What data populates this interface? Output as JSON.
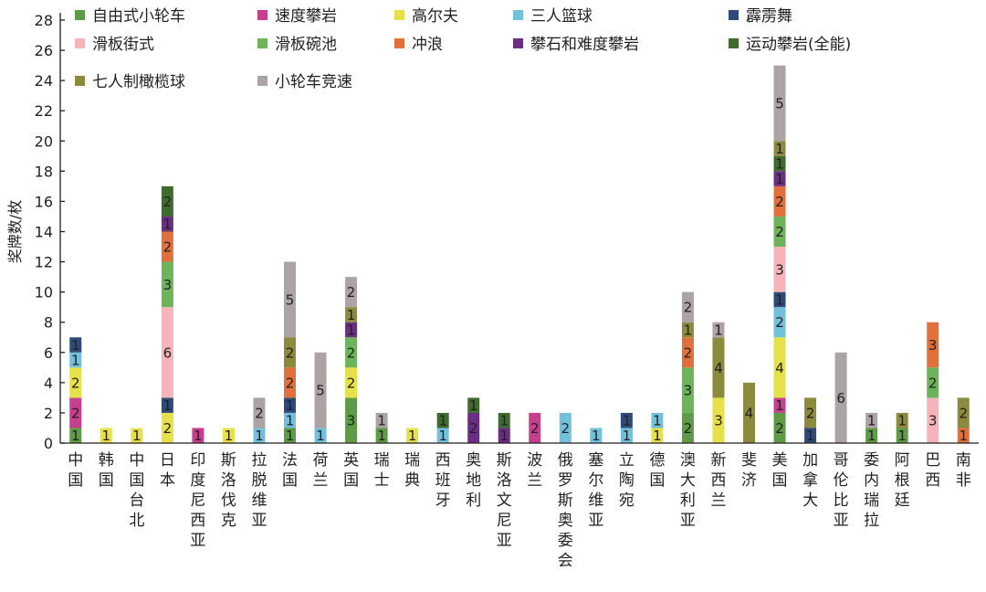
{
  "chart_data": {
    "type": "bar",
    "stacked": true,
    "title": "",
    "xlabel": "",
    "ylabel": "奖牌数/枚",
    "ylim": [
      0,
      28
    ],
    "yticks": [
      0,
      2,
      4,
      6,
      8,
      10,
      12,
      14,
      16,
      18,
      20,
      22,
      24,
      26,
      28
    ],
    "grid": false,
    "legend_position": "top-left",
    "categories": [
      "中国",
      "韩国",
      "中国台北",
      "日本",
      "印度尼西亚",
      "斯洛伐克",
      "拉脱维亚",
      "法国",
      "荷兰",
      "英国",
      "瑞士",
      "瑞典",
      "西班牙",
      "奥地利",
      "斯洛文尼亚",
      "波兰",
      "俄罗斯奥委会",
      "塞尔维亚",
      "立陶宛",
      "德国",
      "澳大利亚",
      "新西兰",
      "斐济",
      "美国",
      "加拿大",
      "哥伦比亚",
      "委内瑞拉",
      "阿根廷",
      "巴西",
      "南非"
    ],
    "series": [
      {
        "name": "自由式小轮车",
        "color": "#5e9b47",
        "values": [
          1,
          0,
          0,
          0,
          0,
          0,
          0,
          1,
          0,
          3,
          1,
          0,
          0,
          0,
          0,
          0,
          0,
          0,
          0,
          0,
          2,
          0,
          0,
          2,
          0,
          0,
          1,
          1,
          0,
          0
        ]
      },
      {
        "name": "速度攀岩",
        "color": "#c53f8e",
        "values": [
          2,
          0,
          0,
          0,
          1,
          0,
          0,
          0,
          0,
          0,
          0,
          0,
          0,
          0,
          0,
          2,
          0,
          0,
          0,
          0,
          0,
          0,
          0,
          1,
          0,
          0,
          0,
          0,
          0,
          0
        ]
      },
      {
        "name": "高尔夫",
        "color": "#e6e14a",
        "values": [
          2,
          1,
          1,
          2,
          0,
          1,
          0,
          0,
          0,
          2,
          0,
          1,
          0,
          0,
          0,
          0,
          0,
          0,
          0,
          1,
          0,
          3,
          0,
          4,
          0,
          0,
          0,
          0,
          0,
          0
        ]
      },
      {
        "name": "三人篮球",
        "color": "#72c1dc",
        "values": [
          1,
          0,
          0,
          0,
          0,
          0,
          1,
          1,
          1,
          0,
          0,
          0,
          1,
          0,
          0,
          0,
          2,
          1,
          1,
          1,
          0,
          0,
          0,
          2,
          0,
          0,
          0,
          0,
          0,
          0
        ]
      },
      {
        "name": "霹雳舞",
        "color": "#2d4a7a",
        "values": [
          1,
          0,
          0,
          1,
          0,
          0,
          0,
          1,
          0,
          0,
          0,
          0,
          0,
          0,
          0,
          0,
          0,
          0,
          1,
          0,
          0,
          0,
          0,
          1,
          1,
          0,
          0,
          0,
          0,
          0
        ]
      },
      {
        "name": "滑板街式",
        "color": "#f6b4b9",
        "values": [
          0,
          0,
          0,
          6,
          0,
          0,
          0,
          0,
          0,
          0,
          0,
          0,
          0,
          0,
          0,
          0,
          0,
          0,
          0,
          0,
          0,
          0,
          0,
          3,
          0,
          0,
          0,
          0,
          3,
          0
        ]
      },
      {
        "name": "滑板碗池",
        "color": "#6db35a",
        "values": [
          0,
          0,
          0,
          3,
          0,
          0,
          0,
          0,
          0,
          2,
          0,
          0,
          0,
          0,
          0,
          0,
          0,
          0,
          0,
          0,
          3,
          0,
          0,
          2,
          0,
          0,
          0,
          0,
          2,
          0
        ]
      },
      {
        "name": "冲浪",
        "color": "#e2703a",
        "values": [
          0,
          0,
          0,
          2,
          0,
          0,
          0,
          2,
          0,
          0,
          0,
          0,
          0,
          0,
          0,
          0,
          0,
          0,
          0,
          0,
          2,
          0,
          0,
          2,
          0,
          0,
          0,
          0,
          3,
          1
        ]
      },
      {
        "name": "攀石和难度攀岩",
        "color": "#6a2f82",
        "values": [
          0,
          0,
          0,
          1,
          0,
          0,
          0,
          0,
          0,
          1,
          0,
          0,
          0,
          2,
          1,
          0,
          0,
          0,
          0,
          0,
          0,
          0,
          0,
          1,
          0,
          0,
          0,
          0,
          0,
          0
        ]
      },
      {
        "name": "运动攀岩(全能)",
        "color": "#3f6b2f",
        "values": [
          0,
          0,
          0,
          2,
          0,
          0,
          0,
          0,
          0,
          0,
          0,
          0,
          1,
          1,
          1,
          0,
          0,
          0,
          0,
          0,
          0,
          0,
          0,
          1,
          0,
          0,
          0,
          0,
          0,
          0
        ]
      },
      {
        "name": "七人制橄榄球",
        "color": "#8c8a3c",
        "values": [
          0,
          0,
          0,
          0,
          0,
          0,
          0,
          2,
          0,
          1,
          0,
          0,
          0,
          0,
          0,
          0,
          0,
          0,
          0,
          0,
          1,
          4,
          4,
          1,
          2,
          0,
          0,
          1,
          0,
          2
        ]
      },
      {
        "name": "小轮车竞速",
        "color": "#aba3a4",
        "values": [
          0,
          0,
          0,
          0,
          0,
          0,
          2,
          5,
          5,
          2,
          1,
          0,
          0,
          0,
          0,
          0,
          0,
          0,
          0,
          0,
          2,
          1,
          0,
          5,
          0,
          6,
          1,
          0,
          0,
          0
        ]
      }
    ]
  }
}
